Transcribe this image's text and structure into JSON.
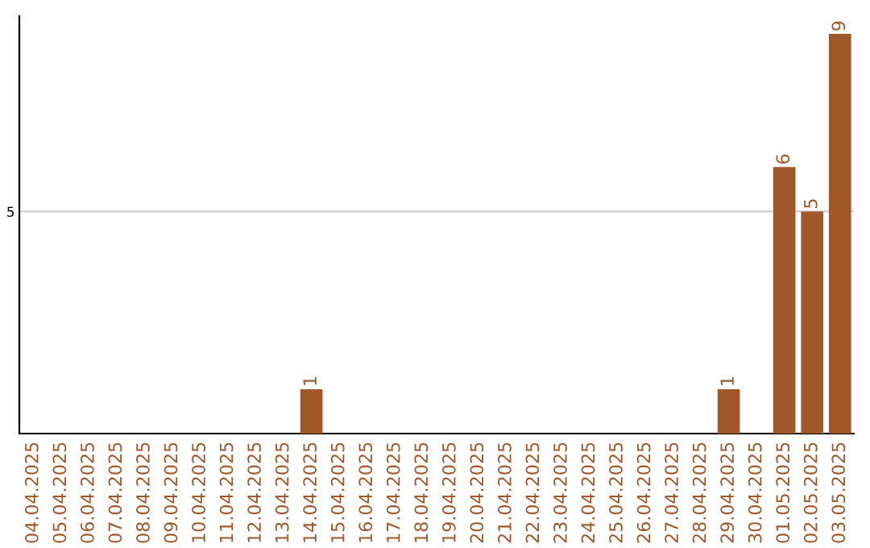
{
  "chart_data": {
    "type": "bar",
    "categories": [
      "04.04.2025",
      "05.04.2025",
      "06.04.2025",
      "07.04.2025",
      "08.04.2025",
      "09.04.2025",
      "10.04.2025",
      "11.04.2025",
      "12.04.2025",
      "13.04.2025",
      "14.04.2025",
      "15.04.2025",
      "16.04.2025",
      "17.04.2025",
      "18.04.2025",
      "19.04.2025",
      "20.04.2025",
      "21.04.2025",
      "22.04.2025",
      "23.04.2025",
      "24.04.2025",
      "25.04.2025",
      "26.04.2025",
      "27.04.2025",
      "28.04.2025",
      "29.04.2025",
      "30.04.2025",
      "01.05.2025",
      "02.05.2025",
      "03.05.2025"
    ],
    "values": [
      0,
      0,
      0,
      0,
      0,
      0,
      0,
      0,
      0,
      0,
      1,
      0,
      0,
      0,
      0,
      0,
      0,
      0,
      0,
      0,
      0,
      0,
      0,
      0,
      0,
      1,
      0,
      6,
      5,
      9
    ],
    "color": "#a0572a",
    "value_labels": [
      null,
      null,
      null,
      null,
      null,
      null,
      null,
      null,
      null,
      null,
      "1",
      null,
      null,
      null,
      null,
      null,
      null,
      null,
      null,
      null,
      null,
      null,
      null,
      null,
      null,
      "1",
      null,
      "6",
      "5",
      "9"
    ],
    "ylim": [
      0,
      9.4
    ],
    "yticks": [
      5
    ],
    "grid": "y"
  }
}
